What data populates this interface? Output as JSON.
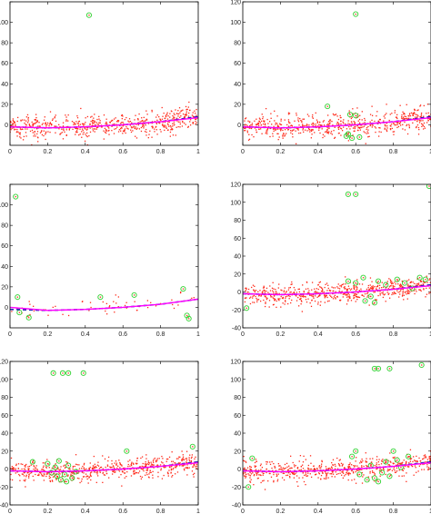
{
  "figure": {
    "layout": "3 rows x 2 columns of scatter plots with fitted curves",
    "colors": {
      "points": "#ff2a1a",
      "outliers": "#2fd02f",
      "true_curve": "#1f1fb0",
      "fit_curve": "#ff00ff"
    }
  },
  "chart_data": [
    {
      "type": "scatter",
      "panel": "row1-left",
      "xlim": [
        0,
        1
      ],
      "ylim": [
        -20,
        120
      ],
      "xticks": [
        "0",
        "0.2",
        "0.4",
        "0.6",
        "0.8",
        "1"
      ],
      "yticks": [
        "0",
        "20",
        "40",
        "60",
        "80",
        "100",
        "120"
      ],
      "yticks_visible": [
        "0",
        "20",
        "40",
        "60",
        "80",
        "100"
      ],
      "series": [
        {
          "kind": "points",
          "n": 600,
          "x_range": [
            0,
            1
          ],
          "noise_sd": 6,
          "color": "#ff2a1a"
        },
        {
          "kind": "outliers",
          "color": "#2fd02f",
          "points": [
            [
              0.42,
              107
            ]
          ]
        },
        {
          "kind": "curve",
          "style": "dashed",
          "color": "#1f1fb0",
          "x": [
            0,
            0.2,
            0.4,
            0.6,
            0.8,
            1
          ],
          "y": [
            -2,
            -3,
            -2,
            0,
            3,
            8
          ]
        },
        {
          "kind": "curve",
          "style": "solid",
          "color": "#ff00ff",
          "x": [
            0,
            0.2,
            0.4,
            0.6,
            0.8,
            1
          ],
          "y": [
            -2,
            -3,
            -2,
            0,
            3,
            7
          ]
        }
      ]
    },
    {
      "type": "scatter",
      "panel": "row1-right",
      "xlim": [
        0,
        1
      ],
      "ylim": [
        -20,
        120
      ],
      "xticks": [
        "0",
        "0.2",
        "0.4",
        "0.6",
        "0.8",
        "1"
      ],
      "yticks": [
        "0",
        "20",
        "40",
        "60",
        "80",
        "100",
        "120"
      ],
      "yticks_visible": [
        "0",
        "20",
        "40",
        "60",
        "80",
        "100",
        "120"
      ],
      "series": [
        {
          "kind": "points",
          "n": 600,
          "x_range": [
            0,
            1
          ],
          "noise_sd": 6,
          "color": "#ff2a1a"
        },
        {
          "kind": "outliers",
          "color": "#2fd02f",
          "points": [
            [
              0.6,
              108
            ],
            [
              0.45,
              18
            ],
            [
              0.57,
              10
            ],
            [
              0.6,
              9
            ],
            [
              0.55,
              -11
            ],
            [
              0.58,
              -13
            ],
            [
              0.62,
              -12
            ],
            [
              0.56,
              -9
            ]
          ]
        },
        {
          "kind": "curve",
          "style": "dashed",
          "color": "#1f1fb0",
          "x": [
            0,
            0.2,
            0.4,
            0.6,
            0.8,
            1
          ],
          "y": [
            -2,
            -3,
            -2,
            0,
            3,
            8
          ]
        },
        {
          "kind": "curve",
          "style": "solid",
          "color": "#ff00ff",
          "x": [
            0,
            0.2,
            0.4,
            0.6,
            0.8,
            1
          ],
          "y": [
            -2,
            -3,
            -2,
            0,
            3,
            7
          ]
        }
      ]
    },
    {
      "type": "scatter",
      "panel": "row2-left",
      "xlim": [
        0,
        1
      ],
      "ylim": [
        -20,
        120
      ],
      "xticks": [
        "0",
        "0.2",
        "0.4",
        "0.6",
        "0.8",
        "1"
      ],
      "yticks": [
        "0",
        "20",
        "40",
        "60",
        "80",
        "100",
        "120"
      ],
      "yticks_visible": [
        "0",
        "20",
        "40",
        "60",
        "80",
        "100"
      ],
      "series": [
        {
          "kind": "points",
          "n": 60,
          "x_range": [
            0,
            1
          ],
          "noise_sd": 5,
          "color": "#ff2a1a"
        },
        {
          "kind": "outliers",
          "color": "#2fd02f",
          "points": [
            [
              0.03,
              108
            ],
            [
              0.04,
              10
            ],
            [
              0.05,
              -5
            ],
            [
              0.1,
              -10
            ],
            [
              0.48,
              10
            ],
            [
              0.66,
              12
            ],
            [
              0.92,
              18
            ],
            [
              0.94,
              -8
            ],
            [
              0.95,
              -11
            ]
          ]
        },
        {
          "kind": "curve",
          "style": "dashed",
          "color": "#1f1fb0",
          "x": [
            0,
            0.2,
            0.4,
            0.6,
            0.8,
            1
          ],
          "y": [
            -2,
            -3,
            -2,
            0,
            3,
            8
          ]
        },
        {
          "kind": "curve",
          "style": "solid",
          "color": "#ff00ff",
          "x": [
            0,
            0.2,
            0.4,
            0.6,
            0.8,
            1
          ],
          "y": [
            0,
            -3,
            -2,
            0,
            3,
            8
          ]
        }
      ]
    },
    {
      "type": "scatter",
      "panel": "row2-right",
      "xlim": [
        0,
        1
      ],
      "ylim": [
        -40,
        120
      ],
      "xticks": [
        "0",
        "0.2",
        "0.4",
        "0.6",
        "0.8",
        "1"
      ],
      "yticks": [
        "-40",
        "-20",
        "0",
        "20",
        "40",
        "60",
        "80",
        "100",
        "120"
      ],
      "yticks_visible": [
        "-40",
        "-20",
        "0",
        "20",
        "40",
        "60",
        "80",
        "100",
        "120"
      ],
      "series": [
        {
          "kind": "points",
          "n": 600,
          "x_range": [
            0,
            1
          ],
          "noise_sd": 6,
          "color": "#ff2a1a"
        },
        {
          "kind": "outliers",
          "color": "#2fd02f",
          "points": [
            [
              0.56,
              109
            ],
            [
              0.6,
              109
            ],
            [
              0.99,
              118
            ],
            [
              0.02,
              -18
            ],
            [
              0.56,
              12
            ],
            [
              0.6,
              10
            ],
            [
              0.64,
              16
            ],
            [
              0.68,
              -5
            ],
            [
              0.72,
              12
            ],
            [
              0.76,
              8
            ],
            [
              0.82,
              14
            ],
            [
              0.86,
              10
            ],
            [
              0.9,
              4
            ],
            [
              0.94,
              16
            ],
            [
              0.97,
              14
            ],
            [
              0.65,
              -10
            ],
            [
              0.7,
              -12
            ]
          ]
        },
        {
          "kind": "curve",
          "style": "dashed",
          "color": "#1f1fb0",
          "x": [
            0,
            0.2,
            0.4,
            0.6,
            0.8,
            1
          ],
          "y": [
            -2,
            -3,
            -2,
            0,
            3,
            8
          ]
        },
        {
          "kind": "curve",
          "style": "solid",
          "color": "#ff00ff",
          "x": [
            0,
            0.2,
            0.4,
            0.6,
            0.8,
            1
          ],
          "y": [
            -2,
            -3,
            -2,
            0,
            3,
            7
          ]
        }
      ]
    },
    {
      "type": "scatter",
      "panel": "row3-left",
      "xlim": [
        0,
        1
      ],
      "ylim": [
        -40,
        120
      ],
      "xticks": [
        "0",
        "0.2",
        "0.4",
        "0.6",
        "0.8",
        "1"
      ],
      "yticks": [
        "-40",
        "-20",
        "0",
        "20",
        "40",
        "60",
        "80",
        "100",
        "120"
      ],
      "yticks_visible": [
        "-40",
        "-20",
        "0",
        "20",
        "40",
        "60",
        "80",
        "100",
        "120"
      ],
      "series": [
        {
          "kind": "points",
          "n": 600,
          "x_range": [
            0,
            1
          ],
          "noise_sd": 6,
          "color": "#ff2a1a"
        },
        {
          "kind": "outliers",
          "color": "#2fd02f",
          "points": [
            [
              0.23,
              107
            ],
            [
              0.28,
              107
            ],
            [
              0.31,
              107
            ],
            [
              0.39,
              107
            ],
            [
              0.97,
              25
            ],
            [
              0.62,
              20
            ],
            [
              0.12,
              8
            ],
            [
              0.2,
              6
            ],
            [
              0.22,
              -4
            ],
            [
              0.25,
              -8
            ],
            [
              0.27,
              -12
            ],
            [
              0.29,
              -6
            ],
            [
              0.31,
              4
            ],
            [
              0.33,
              -10
            ],
            [
              0.35,
              -3
            ],
            [
              0.24,
              2
            ],
            [
              0.3,
              -14
            ],
            [
              0.26,
              9
            ]
          ]
        },
        {
          "kind": "curve",
          "style": "dashed",
          "color": "#1f1fb0",
          "x": [
            0,
            0.2,
            0.4,
            0.6,
            0.8,
            1
          ],
          "y": [
            -2,
            -3,
            -2,
            0,
            3,
            8
          ]
        },
        {
          "kind": "curve",
          "style": "solid",
          "color": "#ff00ff",
          "x": [
            0,
            0.2,
            0.4,
            0.6,
            0.8,
            1
          ],
          "y": [
            -2,
            -3,
            -2,
            0,
            3,
            7
          ]
        }
      ]
    },
    {
      "type": "scatter",
      "panel": "row3-right",
      "xlim": [
        0,
        1
      ],
      "ylim": [
        -40,
        120
      ],
      "xticks": [
        "0",
        "0.2",
        "0.4",
        "0.6",
        "0.8",
        "1"
      ],
      "yticks": [
        "-40",
        "-20",
        "0",
        "20",
        "40",
        "60",
        "80",
        "100",
        "120"
      ],
      "yticks_visible": [
        "-40",
        "-20",
        "0",
        "20",
        "40",
        "60",
        "80",
        "100",
        "120"
      ],
      "series": [
        {
          "kind": "points",
          "n": 600,
          "x_range": [
            0,
            1
          ],
          "noise_sd": 6,
          "color": "#ff2a1a"
        },
        {
          "kind": "outliers",
          "color": "#2fd02f",
          "points": [
            [
              0.7,
              112
            ],
            [
              0.72,
              112
            ],
            [
              0.78,
              112
            ],
            [
              0.95,
              116
            ],
            [
              0.05,
              12
            ],
            [
              0.58,
              14
            ],
            [
              0.62,
              -6
            ],
            [
              0.66,
              -12
            ],
            [
              0.68,
              4
            ],
            [
              0.7,
              -10
            ],
            [
              0.72,
              -14
            ],
            [
              0.74,
              -4
            ],
            [
              0.76,
              8
            ],
            [
              0.78,
              -8
            ],
            [
              0.8,
              20
            ],
            [
              0.82,
              10
            ],
            [
              0.84,
              2
            ],
            [
              0.88,
              14
            ],
            [
              0.6,
              20
            ],
            [
              0.03,
              -20
            ]
          ]
        },
        {
          "kind": "curve",
          "style": "dashed",
          "color": "#1f1fb0",
          "x": [
            0,
            0.2,
            0.4,
            0.6,
            0.8,
            1
          ],
          "y": [
            -2,
            -3,
            -2,
            0,
            3,
            8
          ]
        },
        {
          "kind": "curve",
          "style": "solid",
          "color": "#ff00ff",
          "x": [
            0,
            0.2,
            0.4,
            0.6,
            0.8,
            1
          ],
          "y": [
            -2,
            -3,
            -2,
            0,
            3,
            7
          ]
        }
      ]
    }
  ]
}
